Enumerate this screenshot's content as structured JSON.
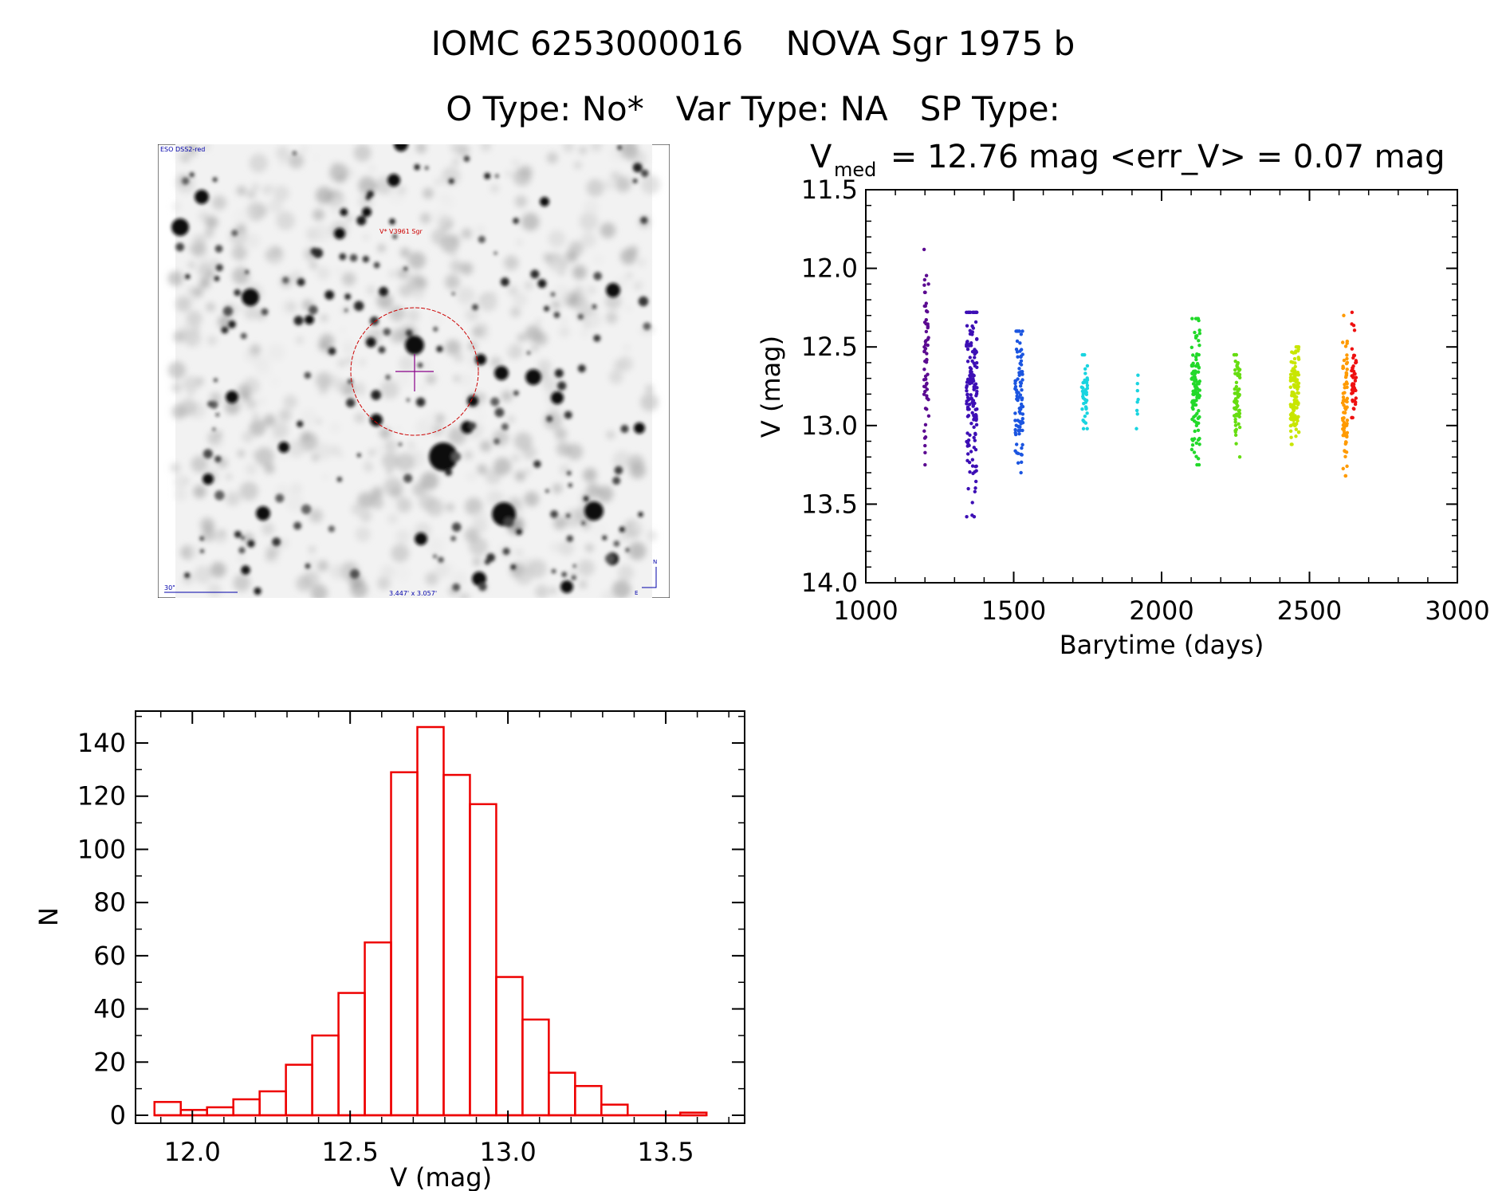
{
  "header": {
    "line1": "IOMC 6253000016    NOVA Sgr 1975 b",
    "line2": "O Type: No*   Var Type: NA   SP Type:"
  },
  "finder": {
    "survey_label": "ESO DSS2-red",
    "object_label": "V* V3961 Sgr",
    "scale_label": "30\"",
    "fov_label": "3.447' x 3.057'",
    "north_label": "N",
    "east_label": "E"
  },
  "lightcurve_stats": {
    "vmed_symbol": "V",
    "vmed_sub": "med",
    "stats_text": " = 12.76 mag <err_V> = 0.07 mag"
  },
  "chart_data": [
    {
      "type": "scatter",
      "name": "lightcurve",
      "xlabel": "Barytime (days)",
      "ylabel": "V (mag)",
      "xlim": [
        1000,
        3000
      ],
      "ylim": [
        14.0,
        11.5
      ],
      "y_inverted": true,
      "xticks": [
        "1000",
        "1500",
        "2000",
        "2500",
        "3000"
      ],
      "yticks": [
        "11.5",
        "12.0",
        "12.5",
        "13.0",
        "13.5",
        "14.0"
      ],
      "xtick_values": [
        1000,
        1500,
        2000,
        2500,
        3000
      ],
      "ytick_values": [
        11.5,
        12.0,
        12.5,
        13.0,
        13.5,
        14.0
      ],
      "groups": [
        {
          "x_center": 1205,
          "x_spread": 8,
          "y_min": 11.88,
          "y_max": 13.25,
          "y_center": 12.55,
          "count": 60,
          "color": "#5b0a91"
        },
        {
          "x_center": 1358,
          "x_spread": 18,
          "y_min": 12.28,
          "y_max": 13.58,
          "y_center": 12.82,
          "count": 150,
          "color": "#3d0fb5"
        },
        {
          "x_center": 1518,
          "x_spread": 14,
          "y_min": 12.4,
          "y_max": 13.3,
          "y_center": 12.78,
          "count": 90,
          "color": "#1b55e0"
        },
        {
          "x_center": 1740,
          "x_spread": 10,
          "y_min": 12.55,
          "y_max": 13.02,
          "y_center": 12.78,
          "count": 40,
          "color": "#19d4e0"
        },
        {
          "x_center": 1918,
          "x_spread": 3,
          "y_min": 12.68,
          "y_max": 13.02,
          "y_center": 12.85,
          "count": 8,
          "color": "#19d4e0"
        },
        {
          "x_center": 2115,
          "x_spread": 14,
          "y_min": 12.32,
          "y_max": 13.25,
          "y_center": 12.75,
          "count": 110,
          "color": "#22d92a"
        },
        {
          "x_center": 2255,
          "x_spread": 10,
          "y_min": 12.55,
          "y_max": 13.2,
          "y_center": 12.82,
          "count": 70,
          "color": "#66dd11"
        },
        {
          "x_center": 2450,
          "x_spread": 14,
          "y_min": 12.5,
          "y_max": 13.12,
          "y_center": 12.8,
          "count": 130,
          "color": "#c8e600"
        },
        {
          "x_center": 2620,
          "x_spread": 8,
          "y_min": 12.3,
          "y_max": 13.32,
          "y_center": 12.85,
          "count": 70,
          "color": "#ff9a00"
        },
        {
          "x_center": 2650,
          "x_spread": 8,
          "y_min": 12.28,
          "y_max": 12.95,
          "y_center": 12.7,
          "count": 50,
          "color": "#ee1111"
        }
      ]
    },
    {
      "type": "bar",
      "name": "histogram",
      "xlabel": "V (mag)",
      "ylabel": "N",
      "xlim": [
        11.82,
        13.75
      ],
      "ylim": [
        0,
        152
      ],
      "xticks": [
        "12.0",
        "12.5",
        "13.0",
        "13.5"
      ],
      "yticks": [
        "0",
        "20",
        "40",
        "60",
        "80",
        "100",
        "120",
        "140"
      ],
      "xtick_values": [
        12.0,
        12.5,
        13.0,
        13.5
      ],
      "ytick_values": [
        0,
        20,
        40,
        60,
        80,
        100,
        120,
        140
      ],
      "bin_start": 11.88,
      "bin_width": 0.0833,
      "values": [
        5,
        2,
        3,
        6,
        9,
        19,
        30,
        46,
        65,
        129,
        146,
        128,
        117,
        52,
        36,
        16,
        11,
        4,
        0,
        0,
        1
      ],
      "color": "#ee0000"
    }
  ]
}
